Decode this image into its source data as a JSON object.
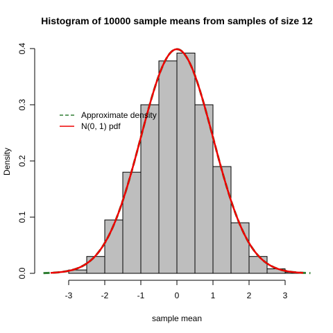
{
  "chart_data": {
    "type": "bar",
    "title": "Histogram of 10000 sample means from samples of size 12",
    "xlabel": "sample mean",
    "ylabel": "Density",
    "xlim": [
      -3.75,
      3.75
    ],
    "ylim": [
      0,
      0.4
    ],
    "x_ticks": [
      -3,
      -2,
      -1,
      0,
      1,
      2,
      3
    ],
    "x_tick_labels": [
      "-3",
      "-2",
      "-1",
      "0",
      "1",
      "2",
      "3"
    ],
    "y_ticks": [
      0,
      0.1,
      0.2,
      0.3,
      0.4
    ],
    "y_tick_labels": [
      "0.0",
      "0.1",
      "0.2",
      "0.3",
      "0.4"
    ],
    "grid": false,
    "legend_position": "left",
    "bins": [
      {
        "start": -3.0,
        "end": -2.5,
        "density": 0.006
      },
      {
        "start": -2.5,
        "end": -2.0,
        "density": 0.03
      },
      {
        "start": -2.0,
        "end": -1.5,
        "density": 0.095
      },
      {
        "start": -1.5,
        "end": -1.0,
        "density": 0.18
      },
      {
        "start": -1.0,
        "end": -0.5,
        "density": 0.3
      },
      {
        "start": -0.5,
        "end": 0.0,
        "density": 0.378
      },
      {
        "start": 0.0,
        "end": 0.5,
        "density": 0.392
      },
      {
        "start": 0.5,
        "end": 1.0,
        "density": 0.3
      },
      {
        "start": 1.0,
        "end": 1.5,
        "density": 0.19
      },
      {
        "start": 1.5,
        "end": 2.0,
        "density": 0.09
      },
      {
        "start": 2.0,
        "end": 2.5,
        "density": 0.03
      },
      {
        "start": 2.5,
        "end": 3.0,
        "density": 0.008
      },
      {
        "start": 3.0,
        "end": 3.5,
        "density": 0.002
      }
    ],
    "series": [
      {
        "name": "Approximate density",
        "type": "line",
        "style": "dashed",
        "color": "#2e7d32",
        "x_range": [
          -3.7,
          3.7
        ]
      },
      {
        "name": "N(0, 1) pdf",
        "type": "line",
        "style": "solid",
        "color": "#ee0000",
        "x_range": [
          -3.5,
          3.5
        ]
      }
    ],
    "bar_fill": "#bebebe",
    "bar_stroke": "#000000"
  }
}
